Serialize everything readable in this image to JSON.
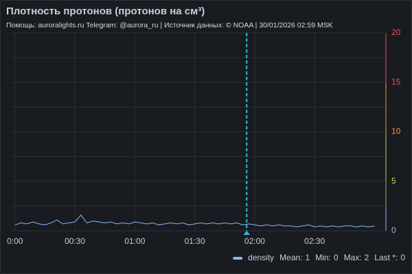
{
  "chart_data": {
    "type": "line",
    "title": "Плотность протонов (протонов на см³)",
    "subtitle": "Помощь: auroralights.ru Telegram: @aurora_ru | Источник данных:  © NOAA | 30/01/2026 02:59 MSK",
    "x": [
      0,
      3,
      6,
      9,
      12,
      15,
      18,
      21,
      24,
      27,
      30,
      33,
      36,
      39,
      42,
      45,
      48,
      51,
      54,
      57,
      60,
      63,
      66,
      69,
      72,
      75,
      78,
      81,
      84,
      87,
      90,
      93,
      96,
      99,
      102,
      105,
      108,
      111,
      114,
      117,
      120,
      123,
      126,
      129,
      132,
      135,
      138,
      141,
      144,
      147,
      150,
      153,
      156,
      159,
      162,
      165,
      168,
      171,
      174,
      177,
      180
    ],
    "series": [
      {
        "name": "density",
        "color": "#8ab8ff",
        "axis": "y2",
        "values": [
          0.6,
          0.8,
          0.7,
          0.9,
          0.7,
          0.6,
          0.8,
          1.1,
          0.7,
          0.8,
          0.9,
          1.6,
          0.8,
          1.0,
          0.9,
          0.8,
          0.9,
          0.7,
          0.8,
          0.7,
          0.9,
          0.8,
          0.7,
          0.8,
          0.6,
          0.7,
          0.8,
          0.7,
          0.8,
          0.6,
          0.7,
          0.8,
          0.7,
          0.8,
          0.7,
          0.8,
          0.7,
          0.8,
          0.6,
          0.7,
          0.6,
          0.5,
          0.6,
          0.5,
          0.6,
          0.5,
          0.5,
          0.4,
          0.5,
          0.6,
          0.4,
          0.5,
          0.4,
          0.5,
          0.4,
          0.5,
          0.5,
          0.4,
          0.5,
          0.4,
          0.5
        ]
      }
    ],
    "xlim": [
      -2,
      185
    ],
    "xticks": [
      {
        "value": 0,
        "label": "0:00"
      },
      {
        "value": 30,
        "label": "00:30"
      },
      {
        "value": 60,
        "label": "01:00"
      },
      {
        "value": 90,
        "label": "01:30"
      },
      {
        "value": 120,
        "label": "02:00"
      },
      {
        "value": 150,
        "label": "02:30"
      }
    ],
    "y2lim": [
      0,
      20
    ],
    "y2ticks": [
      0,
      5,
      10,
      15,
      20
    ],
    "minor_y2ticks": [
      2.5,
      7.5,
      12.5,
      17.5
    ],
    "thresholds": [
      {
        "value": 0,
        "color": "#8ab8ff"
      },
      {
        "value": 2.5,
        "color": "#73bf69"
      },
      {
        "value": 5,
        "color": "#c8d24a"
      },
      {
        "value": 10,
        "color": "#ff9830"
      },
      {
        "value": 15,
        "color": "#f2495c"
      }
    ],
    "annotations": [
      {
        "x": 116,
        "color": "#33b5e5"
      }
    ],
    "grid": true,
    "legend": {
      "position": "bottom-right",
      "stats": [
        {
          "label": "Mean:",
          "value": 1
        },
        {
          "label": "Min:",
          "value": 0
        },
        {
          "label": "Max:",
          "value": 2
        },
        {
          "label": "Last *:",
          "value": 0
        }
      ]
    }
  }
}
